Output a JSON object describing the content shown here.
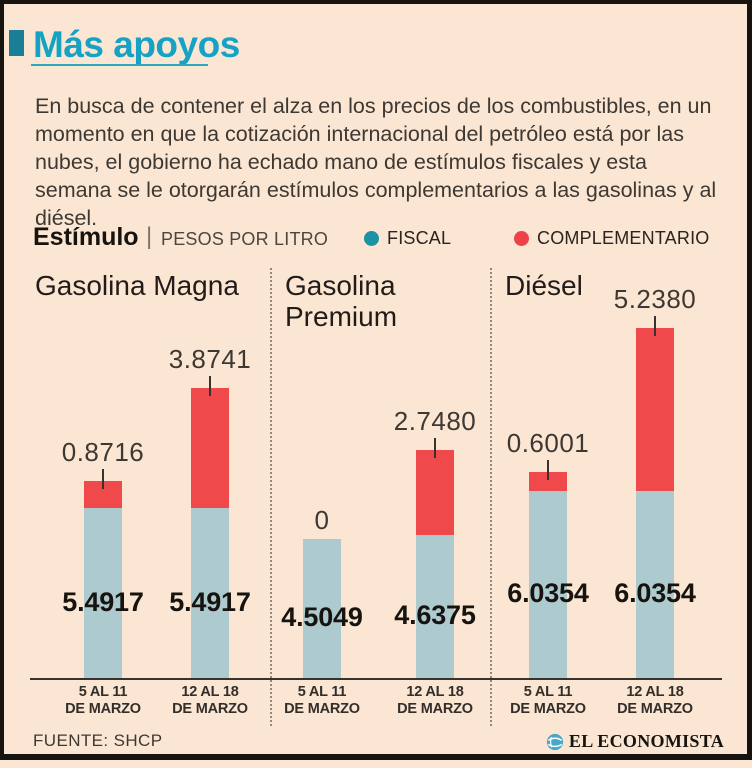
{
  "header": {
    "title": "Más apoyos"
  },
  "intro": {
    "text": "En busca de contener el alza en los precios de los combustibles, en un momento en que la cotización internacional del petróleo está por las nubes, el gobierno ha echado mano de estímulos fiscales y esta semana se le otorgarán estímulos complementarios a las gasolinas y al diésel."
  },
  "legend": {
    "label": "Estímulo",
    "pipe": "|",
    "unit": "PESOS POR LITRO",
    "series": [
      {
        "name": "FISCAL",
        "color": "#1b93a5"
      },
      {
        "name": "COMPLEMENTARIO",
        "color": "#ee4248"
      }
    ]
  },
  "footer": {
    "source": "FUENTE: SHCP",
    "brand": "EL ECONOMISTA"
  },
  "chart_data": {
    "type": "bar",
    "stacked": true,
    "title": "Estímulo",
    "ylabel": "PESOS POR LITRO",
    "series_names": [
      "FISCAL",
      "COMPLEMENTARIO"
    ],
    "colors": {
      "fiscal_bar": "#adcacf",
      "complementario_bar": "#f0494b"
    },
    "legend_position": "top",
    "grid": false,
    "ylim": [
      0,
      11.5
    ],
    "groups": [
      {
        "label_lines": [
          "Gasolina Magna"
        ],
        "bars": [
          {
            "period_lines": [
              "5 AL 11",
              "DE MARZO"
            ],
            "fiscal": 5.4917,
            "fiscal_label": "5.4917",
            "complementario": 0.8716,
            "complementario_label": "0.8716"
          },
          {
            "period_lines": [
              "12 AL 18",
              "DE MARZO"
            ],
            "fiscal": 5.4917,
            "fiscal_label": "5.4917",
            "complementario": 3.8741,
            "complementario_label": "3.8741"
          }
        ]
      },
      {
        "label_lines": [
          "Gasolina",
          "Premium"
        ],
        "bars": [
          {
            "period_lines": [
              "5 AL 11",
              "DE MARZO"
            ],
            "fiscal": 4.5049,
            "fiscal_label": "4.5049",
            "complementario": 0,
            "complementario_label": "0"
          },
          {
            "period_lines": [
              "12 AL 18",
              "DE MARZO"
            ],
            "fiscal": 4.6375,
            "fiscal_label": "4.6375",
            "complementario": 2.748,
            "complementario_label": "2.7480"
          }
        ]
      },
      {
        "label_lines": [
          "Diésel"
        ],
        "bars": [
          {
            "period_lines": [
              "5 AL 11",
              "DE MARZO"
            ],
            "fiscal": 6.0354,
            "fiscal_label": "6.0354",
            "complementario": 0.6001,
            "complementario_label": "0.6001"
          },
          {
            "period_lines": [
              "12 AL 18",
              "DE MARZO"
            ],
            "fiscal": 6.0354,
            "fiscal_label": "6.0354",
            "complementario": 5.238,
            "complementario_label": "5.2380"
          }
        ]
      }
    ]
  }
}
